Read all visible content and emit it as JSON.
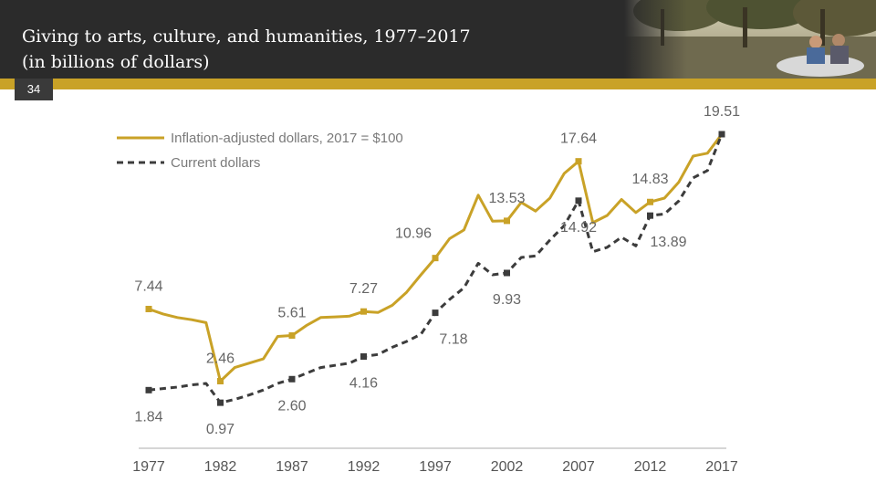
{
  "header": {
    "title_line1": "Giving to arts, culture, and humanities, 1977–2017",
    "title_line2": "(in billions of dollars)"
  },
  "slide_number": "34",
  "colors": {
    "header_bg": "#2b2b2b",
    "accent": "#c9a227",
    "current": "#3c3c3c"
  },
  "chart_data": {
    "type": "line",
    "x": [
      1977,
      1978,
      1979,
      1980,
      1981,
      1982,
      1983,
      1984,
      1985,
      1986,
      1987,
      1988,
      1989,
      1990,
      1991,
      1992,
      1993,
      1994,
      1995,
      1996,
      1997,
      1998,
      1999,
      2000,
      2001,
      2002,
      2003,
      2004,
      2005,
      2006,
      2007,
      2008,
      2009,
      2010,
      2011,
      2012,
      2013,
      2014,
      2015,
      2016,
      2017
    ],
    "series": [
      {
        "name": "Inflation-adjusted dollars, 2017 = $100",
        "style": "solid",
        "color": "#c9a227",
        "values": [
          7.44,
          7.1,
          6.85,
          6.7,
          6.5,
          2.46,
          3.4,
          3.7,
          4.0,
          5.55,
          5.61,
          6.3,
          6.85,
          6.9,
          6.95,
          7.27,
          7.2,
          7.7,
          8.6,
          9.8,
          10.96,
          12.3,
          12.9,
          15.3,
          13.5,
          13.53,
          14.8,
          14.2,
          15.1,
          16.8,
          17.64,
          13.4,
          13.9,
          15.0,
          14.1,
          14.83,
          15.1,
          16.2,
          18.0,
          18.2,
          19.51
        ]
      },
      {
        "name": "Current dollars",
        "style": "dashed",
        "color": "#3c3c3c",
        "values": [
          1.84,
          1.95,
          2.05,
          2.2,
          2.3,
          0.97,
          1.2,
          1.5,
          1.85,
          2.3,
          2.6,
          3.0,
          3.4,
          3.55,
          3.7,
          4.16,
          4.3,
          4.8,
          5.2,
          5.7,
          7.18,
          8.1,
          8.9,
          10.6,
          9.8,
          9.93,
          11.0,
          11.1,
          12.2,
          13.2,
          14.92,
          11.4,
          11.7,
          12.4,
          11.8,
          13.89,
          14.0,
          14.9,
          16.5,
          17.0,
          19.51
        ]
      }
    ],
    "markers": [
      1977,
      1982,
      1987,
      1992,
      1997,
      2002,
      2007,
      2012,
      2017
    ],
    "xticks": [
      "1977",
      "1982",
      "1987",
      "1992",
      "1997",
      "2002",
      "2007",
      "2012",
      "2017"
    ],
    "ylim": [
      0,
      20
    ],
    "legend_position": "top-left",
    "data_labels": [
      {
        "text": "7.44",
        "series": 0,
        "year": 1977,
        "pos": "above"
      },
      {
        "text": "1.84",
        "series": 1,
        "year": 1977,
        "pos": "below"
      },
      {
        "text": "2.46",
        "series": 0,
        "year": 1982,
        "pos": "above"
      },
      {
        "text": "0.97",
        "series": 1,
        "year": 1982,
        "pos": "below"
      },
      {
        "text": "5.61",
        "series": 0,
        "year": 1987,
        "pos": "above"
      },
      {
        "text": "2.60",
        "series": 1,
        "year": 1987,
        "pos": "below"
      },
      {
        "text": "7.27",
        "series": 0,
        "year": 1992,
        "pos": "above"
      },
      {
        "text": "4.16",
        "series": 1,
        "year": 1992,
        "pos": "below"
      },
      {
        "text": "10.96",
        "series": 0,
        "year": 1997,
        "pos": "above-left"
      },
      {
        "text": "7.18",
        "series": 1,
        "year": 1997,
        "pos": "below-right"
      },
      {
        "text": "13.53",
        "series": 0,
        "year": 2002,
        "pos": "above"
      },
      {
        "text": "9.93",
        "series": 1,
        "year": 2002,
        "pos": "below"
      },
      {
        "text": "17.64",
        "series": 0,
        "year": 2007,
        "pos": "above"
      },
      {
        "text": "14.92",
        "series": 1,
        "year": 2007,
        "pos": "below"
      },
      {
        "text": "14.83",
        "series": 0,
        "year": 2012,
        "pos": "above"
      },
      {
        "text": "13.89",
        "series": 1,
        "year": 2012,
        "pos": "below-right"
      },
      {
        "text": "19.51",
        "series": 0,
        "year": 2017,
        "pos": "above"
      }
    ]
  }
}
